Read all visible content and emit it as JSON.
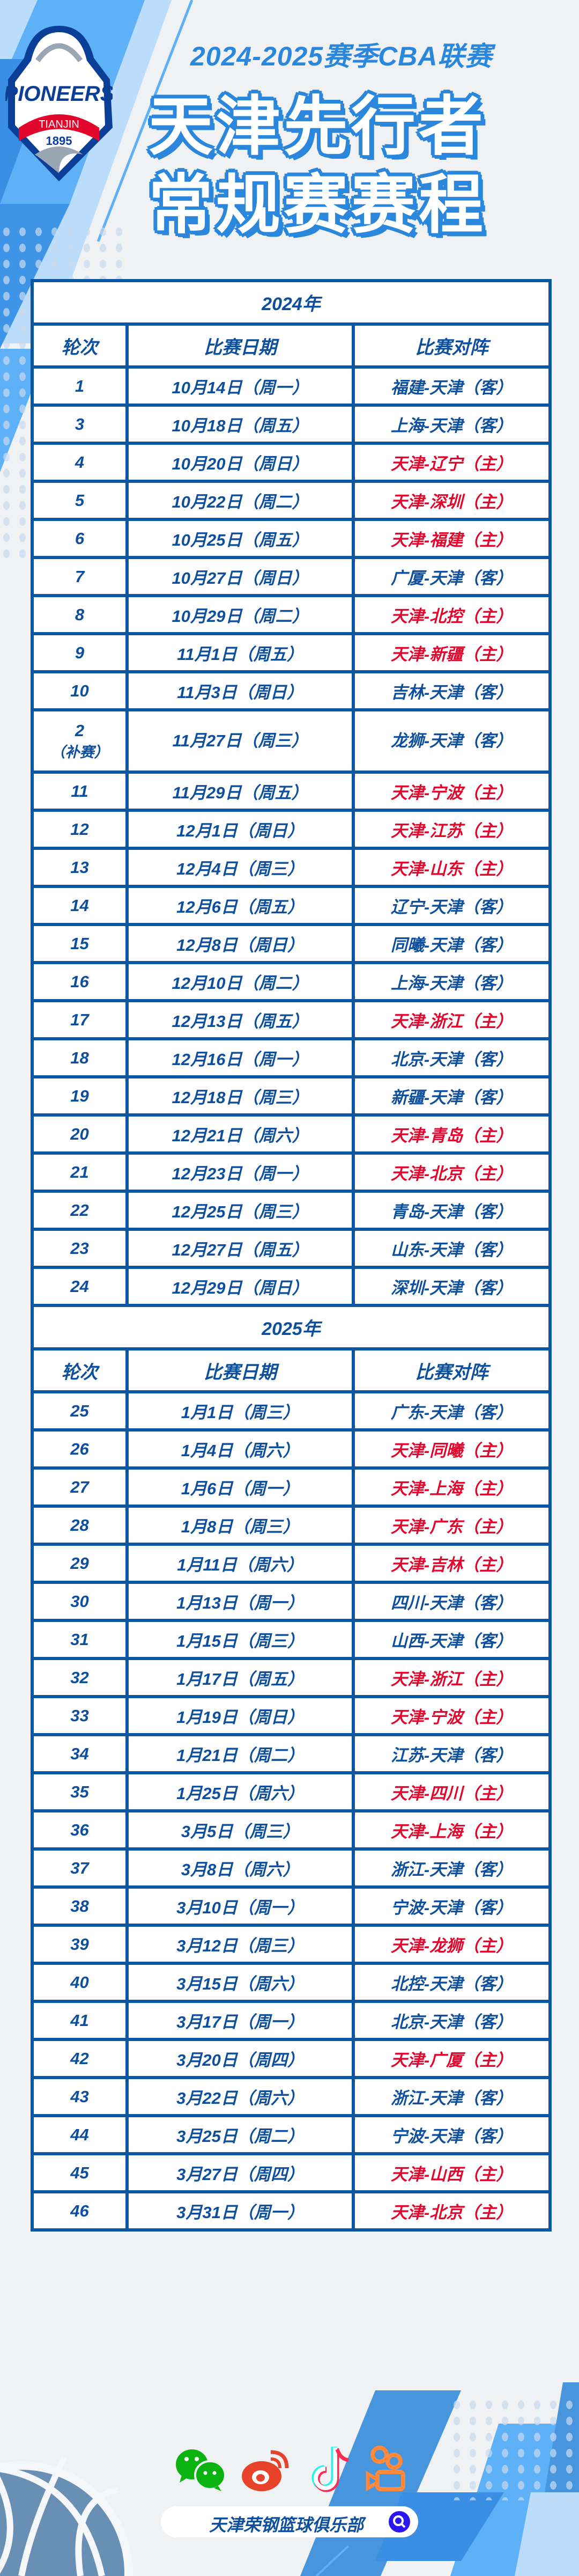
{
  "logo": {
    "name": "PIONEERS",
    "city": "TIANJIN",
    "year": "1895"
  },
  "header": {
    "season": "2024-2025赛季CBA联赛",
    "title_line1": "天津先行者",
    "title_line2": "常规赛赛程"
  },
  "columns": [
    "轮次",
    "比赛日期",
    "比赛对阵"
  ],
  "colors": {
    "border": "#0b56a1",
    "text": "#0d4f9c",
    "home": "#e2062c",
    "accent": "#2b87dc"
  },
  "sections": [
    {
      "year": "2024年",
      "rows": [
        {
          "round": "1",
          "date": "10月14日（周一）",
          "match": "福建-天津（客）"
        },
        {
          "round": "3",
          "date": "10月18日（周五）",
          "match": "上海-天津（客）"
        },
        {
          "round": "4",
          "date": "10月20日（周日）",
          "match": "天津-辽宁（主）"
        },
        {
          "round": "5",
          "date": "10月22日（周二）",
          "match": "天津-深圳（主）"
        },
        {
          "round": "6",
          "date": "10月25日（周五）",
          "match": "天津-福建（主）"
        },
        {
          "round": "7",
          "date": "10月27日（周日）",
          "match": "广厦-天津（客）"
        },
        {
          "round": "8",
          "date": "10月29日（周二）",
          "match": "天津-北控（主）"
        },
        {
          "round": "9",
          "date": "11月1日（周五）",
          "match": "天津-新疆（主）"
        },
        {
          "round": "10",
          "date": "11月3日（周日）",
          "match": "吉林-天津（客）"
        },
        {
          "round": "2",
          "round_note": "（补赛）",
          "date": "11月27日（周三）",
          "match": "龙狮-天津（客）"
        },
        {
          "round": "11",
          "date": "11月29日（周五）",
          "match": "天津-宁波（主）"
        },
        {
          "round": "12",
          "date": "12月1日（周日）",
          "match": "天津-江苏（主）"
        },
        {
          "round": "13",
          "date": "12月4日（周三）",
          "match": "天津-山东（主）"
        },
        {
          "round": "14",
          "date": "12月6日（周五）",
          "match": "辽宁-天津（客）"
        },
        {
          "round": "15",
          "date": "12月8日（周日）",
          "match": "同曦-天津（客）"
        },
        {
          "round": "16",
          "date": "12月10日（周二）",
          "match": "上海-天津（客）"
        },
        {
          "round": "17",
          "date": "12月13日（周五）",
          "match": "天津-浙江（主）"
        },
        {
          "round": "18",
          "date": "12月16日（周一）",
          "match": "北京-天津（客）"
        },
        {
          "round": "19",
          "date": "12月18日（周三）",
          "match": "新疆-天津（客）"
        },
        {
          "round": "20",
          "date": "12月21日（周六）",
          "match": "天津-青岛（主）"
        },
        {
          "round": "21",
          "date": "12月23日（周一）",
          "match": "天津-北京（主）"
        },
        {
          "round": "22",
          "date": "12月25日（周三）",
          "match": "青岛-天津（客）"
        },
        {
          "round": "23",
          "date": "12月27日（周五）",
          "match": "山东-天津（客）"
        },
        {
          "round": "24",
          "date": "12月29日（周日）",
          "match": "深圳-天津（客）"
        }
      ]
    },
    {
      "year": "2025年",
      "rows": [
        {
          "round": "25",
          "date": "1月1日（周三）",
          "match": "广东-天津（客）"
        },
        {
          "round": "26",
          "date": "1月4日（周六）",
          "match": "天津-同曦（主）"
        },
        {
          "round": "27",
          "date": "1月6日（周一）",
          "match": "天津-上海（主）"
        },
        {
          "round": "28",
          "date": "1月8日（周三）",
          "match": "天津-广东（主）"
        },
        {
          "round": "29",
          "date": "1月11日（周六）",
          "match": "天津-吉林（主）"
        },
        {
          "round": "30",
          "date": "1月13日（周一）",
          "match": "四川-天津（客）"
        },
        {
          "round": "31",
          "date": "1月15日（周三）",
          "match": "山西-天津（客）"
        },
        {
          "round": "32",
          "date": "1月17日（周五）",
          "match": "天津-浙江（主）"
        },
        {
          "round": "33",
          "date": "1月19日（周日）",
          "match": "天津-宁波（主）"
        },
        {
          "round": "34",
          "date": "1月21日（周二）",
          "match": "江苏-天津（客）"
        },
        {
          "round": "35",
          "date": "1月25日（周六）",
          "match": "天津-四川（主）"
        },
        {
          "round": "36",
          "date": "3月5日（周三）",
          "match": "天津-上海（主）"
        },
        {
          "round": "37",
          "date": "3月8日（周六）",
          "match": "浙江-天津（客）"
        },
        {
          "round": "38",
          "date": "3月10日（周一）",
          "match": "宁波-天津（客）"
        },
        {
          "round": "39",
          "date": "3月12日（周三）",
          "match": "天津-龙狮（主）"
        },
        {
          "round": "40",
          "date": "3月15日（周六）",
          "match": "北控-天津（客）"
        },
        {
          "round": "41",
          "date": "3月17日（周一）",
          "match": "北京-天津（客）"
        },
        {
          "round": "42",
          "date": "3月20日（周四）",
          "match": "天津-广厦（主）"
        },
        {
          "round": "43",
          "date": "3月22日（周六）",
          "match": "浙江-天津（客）"
        },
        {
          "round": "44",
          "date": "3月25日（周二）",
          "match": "宁波-天津（客）"
        },
        {
          "round": "45",
          "date": "3月27日（周四）",
          "match": "天津-山西（主）"
        },
        {
          "round": "46",
          "date": "3月31日（周一）",
          "match": "天津-北京（主）"
        }
      ]
    }
  ],
  "footer": {
    "social_icons": [
      "wechat-icon",
      "weibo-icon",
      "douyin-icon",
      "kuaishou-icon"
    ],
    "search_text": "天津荣钢篮球俱乐部",
    "search_icon": "search-icon"
  }
}
